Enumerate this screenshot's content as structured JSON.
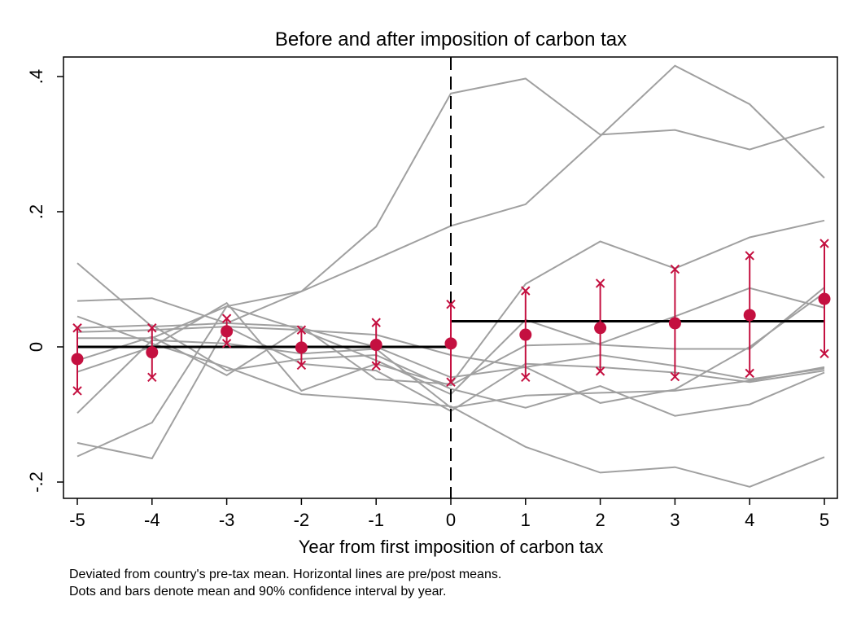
{
  "chart_data": {
    "type": "line",
    "title": "Before and after imposition of carbon tax",
    "xlabel": "Year from first imposition of carbon tax",
    "ylabel": "",
    "x": [
      -5,
      -4,
      -3,
      -2,
      -1,
      0,
      1,
      2,
      3,
      4,
      5
    ],
    "xlim": [
      -5,
      5
    ],
    "ylim": [
      -0.225,
      0.435
    ],
    "x_ticks": [
      {
        "value": -5,
        "label": "-5"
      },
      {
        "value": -4,
        "label": "-4"
      },
      {
        "value": -3,
        "label": "-3"
      },
      {
        "value": -2,
        "label": "-2"
      },
      {
        "value": -1,
        "label": "-1"
      },
      {
        "value": 0,
        "label": "0"
      },
      {
        "value": 1,
        "label": "1"
      },
      {
        "value": 2,
        "label": "2"
      },
      {
        "value": 3,
        "label": "3"
      },
      {
        "value": 4,
        "label": "4"
      },
      {
        "value": 5,
        "label": "5"
      }
    ],
    "y_ticks": [
      {
        "value": -0.2,
        "label": "-.2"
      },
      {
        "value": 0,
        "label": "0"
      },
      {
        "value": 0.2,
        "label": ".2"
      },
      {
        "value": 0.4,
        "label": ".4"
      }
    ],
    "grid": false,
    "event_line_x": 0,
    "country_series": [
      {
        "x": [
          -5,
          -4,
          -3,
          -2,
          -1,
          0,
          1,
          2,
          3,
          4,
          5
        ],
        "values": [
          0.068,
          0.072,
          0.035,
          0.082,
          0.178,
          0.375,
          0.397,
          0.314,
          0.321,
          0.292,
          0.326
        ]
      },
      {
        "x": [
          -5,
          -4,
          -3,
          -2,
          -1,
          0,
          1,
          2,
          3,
          4,
          5
        ],
        "values": [
          0.013,
          0.013,
          0.06,
          0.082,
          0.13,
          0.179,
          0.211,
          0.312,
          0.416,
          0.359,
          0.25
        ]
      },
      {
        "x": [
          -5,
          -4,
          -3,
          -2,
          -1,
          0,
          1,
          2,
          3,
          4,
          5
        ],
        "values": [
          0.124,
          0.03,
          0.035,
          0.03,
          -0.048,
          -0.055,
          0.093,
          0.156,
          0.116,
          0.162,
          0.187
        ]
      },
      {
        "x": [
          -5,
          -4,
          -3,
          -2,
          -1,
          0,
          1,
          2,
          3,
          4,
          5
        ],
        "values": [
          -0.037,
          0.0,
          0.065,
          -0.065,
          -0.025,
          -0.057,
          0.002,
          0.005,
          0.045,
          0.087,
          0.058
        ]
      },
      {
        "x": [
          -5,
          -4,
          -3,
          -2,
          -1,
          0,
          1,
          2,
          3,
          4,
          5
        ],
        "values": [
          -0.162,
          -0.112,
          0.06,
          0.025,
          -0.02,
          -0.07,
          0.04,
          0.003,
          -0.003,
          -0.003,
          0.088
        ]
      },
      {
        "x": [
          -5,
          -4,
          -3,
          -2,
          -1,
          0,
          1,
          2,
          3,
          4,
          5
        ],
        "values": [
          -0.142,
          -0.165,
          0.03,
          0.025,
          0.018,
          -0.012,
          -0.03,
          -0.012,
          -0.028,
          -0.048,
          -0.032
        ]
      },
      {
        "x": [
          -5,
          -4,
          -3,
          -2,
          -1,
          0,
          1,
          2,
          3,
          4,
          5
        ],
        "values": [
          -0.098,
          0.01,
          0.005,
          -0.01,
          -0.003,
          -0.09,
          -0.072,
          -0.068,
          -0.065,
          -0.05,
          -0.03
        ]
      },
      {
        "x": [
          -5,
          -4,
          -3,
          -2,
          -1,
          0,
          1,
          2,
          3,
          4,
          5
        ],
        "values": [
          0.045,
          0.005,
          -0.03,
          -0.07,
          -0.078,
          -0.088,
          -0.148,
          -0.186,
          -0.178,
          -0.207,
          -0.163
        ]
      },
      {
        "x": [
          -5,
          -4,
          -3,
          -2,
          -1,
          0,
          1,
          2,
          3,
          4,
          5
        ],
        "values": [
          0.028,
          0.032,
          -0.035,
          -0.018,
          -0.012,
          -0.062,
          -0.09,
          -0.058,
          -0.102,
          -0.085,
          -0.038
        ]
      },
      {
        "x": [
          -5,
          -4,
          -3,
          -2,
          -1,
          0,
          1,
          2,
          3,
          4,
          5
        ],
        "values": [
          -0.02,
          0.015,
          -0.042,
          0.028,
          0.0,
          -0.045,
          -0.03,
          -0.083,
          -0.063,
          0.0,
          0.08
        ]
      },
      {
        "x": [
          -5,
          -4,
          -3,
          -2,
          -1,
          0,
          1,
          2,
          3,
          4,
          5
        ],
        "values": [
          0.022,
          0.025,
          0.03,
          -0.025,
          -0.035,
          -0.095,
          -0.025,
          -0.03,
          -0.038,
          -0.052,
          -0.035
        ]
      }
    ],
    "yearly_means": {
      "x": [
        -5,
        -4,
        -3,
        -2,
        -1,
        0,
        1,
        2,
        3,
        4,
        5
      ],
      "mean": [
        -0.018,
        -0.008,
        0.023,
        -0.001,
        0.003,
        0.005,
        0.018,
        0.028,
        0.035,
        0.047,
        0.071
      ],
      "ci_low": [
        -0.065,
        -0.045,
        0.005,
        -0.027,
        -0.028,
        -0.052,
        -0.045,
        -0.036,
        -0.044,
        -0.039,
        -0.01
      ],
      "ci_high": [
        0.028,
        0.028,
        0.042,
        0.025,
        0.036,
        0.063,
        0.083,
        0.094,
        0.115,
        0.135,
        0.153
      ]
    },
    "period_means": [
      {
        "from": -5,
        "to": 0,
        "value": 0.0
      },
      {
        "from": 0,
        "to": 5,
        "value": 0.038
      }
    ],
    "colors": {
      "countries": "#a0a0a0",
      "means": "#c41040",
      "period_line": "#000000"
    }
  },
  "notes": [
    "Deviated from country's pre-tax mean. Horizontal lines are pre/post means.",
    "Dots and bars denote mean and 90% confidence interval by year."
  ]
}
